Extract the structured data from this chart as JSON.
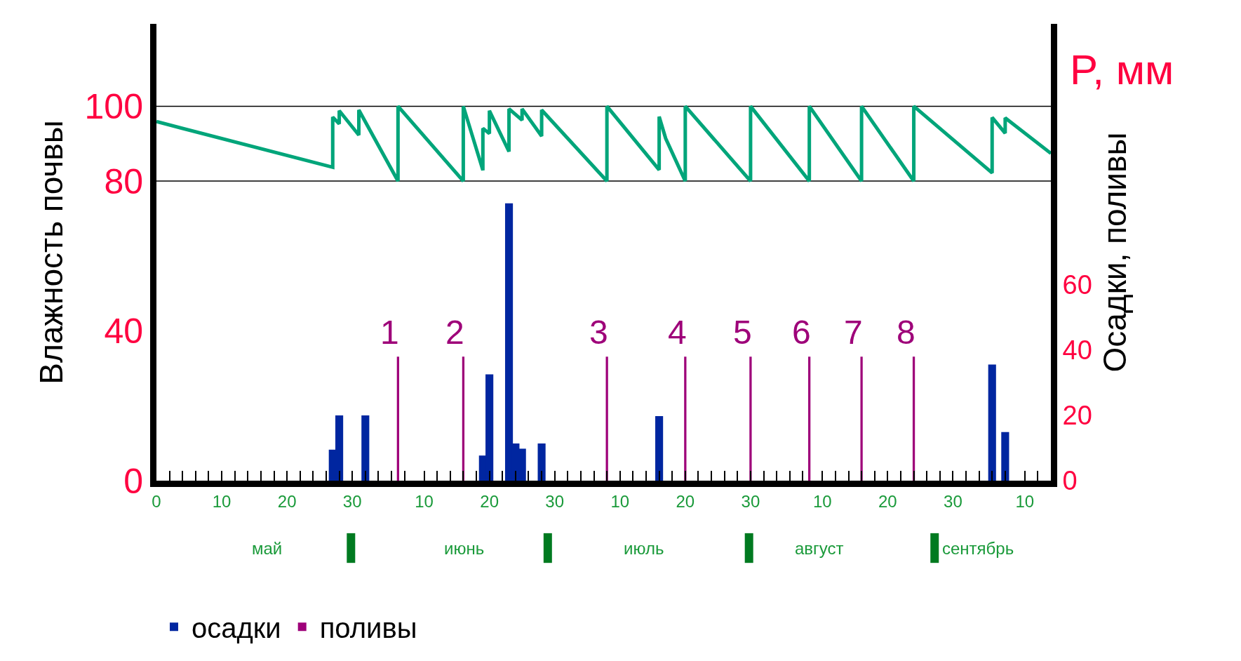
{
  "chart_data": {
    "type": "bar",
    "ylabel": "Влажность почвы",
    "y2label": "Осадки, поливы",
    "annotations": [
      "P, мм",
      "1",
      "2",
      "3",
      "4",
      "5",
      "6",
      "7",
      "8",
      "май",
      "июнь",
      "июль",
      "август",
      "сентябрь"
    ],
    "xlim": [
      "--04-30",
      "--09-14"
    ],
    "xticks": [
      {
        "value": "--04-30",
        "label": "0"
      },
      {
        "value": "--05-02",
        "label": null
      },
      {
        "value": "--05-04",
        "label": null
      },
      {
        "value": "--05-06",
        "label": null
      },
      {
        "value": "--05-08",
        "label": null
      },
      {
        "value": "--05-10",
        "label": "10"
      },
      {
        "value": "--05-12",
        "label": null
      },
      {
        "value": "--05-14",
        "label": null
      },
      {
        "value": "--05-16",
        "label": null
      },
      {
        "value": "--05-18",
        "label": null
      },
      {
        "value": "--05-20",
        "label": "20"
      },
      {
        "value": "--05-22",
        "label": null
      },
      {
        "value": "--05-24",
        "label": null
      },
      {
        "value": "--05-26",
        "label": null
      },
      {
        "value": "--05-28",
        "label": null
      },
      {
        "value": "--05-30",
        "label": "30"
      },
      {
        "value": "--06-01",
        "label": null
      },
      {
        "value": "--06-03",
        "label": null
      },
      {
        "value": "--06-05",
        "label": null
      },
      {
        "value": "--06-07",
        "label": null
      },
      {
        "value": "--06-10",
        "label": "10"
      },
      {
        "value": "--06-12",
        "label": null
      },
      {
        "value": "--06-14",
        "label": null
      },
      {
        "value": "--06-16",
        "label": null
      },
      {
        "value": "--06-18",
        "label": null
      },
      {
        "value": "--06-20",
        "label": "20"
      },
      {
        "value": "--06-22",
        "label": null
      },
      {
        "value": "--06-24",
        "label": null
      },
      {
        "value": "--06-26",
        "label": null
      },
      {
        "value": "--06-28",
        "label": null
      },
      {
        "value": "--06-30",
        "label": "30"
      },
      {
        "value": "--07-02",
        "label": null
      },
      {
        "value": "--07-04",
        "label": null
      },
      {
        "value": "--07-06",
        "label": null
      },
      {
        "value": "--07-08",
        "label": null
      },
      {
        "value": "--07-10",
        "label": "10"
      },
      {
        "value": "--07-12",
        "label": null
      },
      {
        "value": "--07-14",
        "label": null
      },
      {
        "value": "--07-16",
        "label": null
      },
      {
        "value": "--07-18",
        "label": null
      },
      {
        "value": "--07-20",
        "label": "20"
      },
      {
        "value": "--07-22",
        "label": null
      },
      {
        "value": "--07-24",
        "label": null
      },
      {
        "value": "--07-26",
        "label": null
      },
      {
        "value": "--07-28",
        "label": null
      },
      {
        "value": "--07-30",
        "label": "30"
      },
      {
        "value": "--08-01",
        "label": null
      },
      {
        "value": "--08-03",
        "label": null
      },
      {
        "value": "--08-05",
        "label": null
      },
      {
        "value": "--08-07",
        "label": null
      },
      {
        "value": "--08-10",
        "label": "10"
      },
      {
        "value": "--08-12",
        "label": null
      },
      {
        "value": "--08-14",
        "label": null
      },
      {
        "value": "--08-16",
        "label": null
      },
      {
        "value": "--08-18",
        "label": null
      },
      {
        "value": "--08-20",
        "label": "20"
      },
      {
        "value": "--08-22",
        "label": null
      },
      {
        "value": "--08-24",
        "label": null
      },
      {
        "value": "--08-26",
        "label": null
      },
      {
        "value": "--08-28",
        "label": null
      },
      {
        "value": "--08-30",
        "label": "30"
      },
      {
        "value": "--09-01",
        "label": null
      },
      {
        "value": "--09-03",
        "label": null
      },
      {
        "value": "--09-05",
        "label": null
      },
      {
        "value": "--09-07",
        "label": null
      },
      {
        "value": "--09-10",
        "label": "10"
      },
      {
        "value": "--09-12",
        "label": null
      }
    ],
    "ylim": [
      0,
      122
    ],
    "yticks": [
      0,
      40,
      80,
      100
    ],
    "y2lim": [
      0,
      140
    ],
    "y2ticks": [
      0,
      20,
      40,
      60
    ],
    "ref_lines": [
      {
        "axis": "y",
        "value": 80,
        "color": "#000000"
      },
      {
        "axis": "y",
        "value": 100,
        "color": "#000000"
      }
    ],
    "legend": "bottom left",
    "series": [
      {
        "name": "осадки",
        "axis": "y2",
        "color": "#0026a0",
        "x": [
          "--05-27",
          "--05-28",
          "--06-01",
          "--06-19",
          "--06-20",
          "--06-23",
          "--06-24",
          "--06-25",
          "--06-28",
          "--07-16",
          "--09-05",
          "--09-07"
        ],
        "values": [
          9.5,
          20,
          20,
          7.7,
          32.6,
          85,
          11.4,
          9.8,
          11.4,
          19.8,
          35.6,
          14.9
        ]
      },
      {
        "name": "поливы",
        "axis": "y2",
        "color": "#9e0079",
        "x": [
          "--06-06",
          "--06-16",
          "--07-08",
          "--07-20",
          "--07-30",
          "--08-08",
          "--08-16",
          "--08-24"
        ],
        "values": [
          38,
          38,
          38,
          38,
          38,
          38,
          38,
          38
        ]
      },
      {
        "type": "line",
        "axis": "y",
        "color": "#00a57a",
        "x": [
          "--04-30",
          "--05-27",
          "--05-27",
          "--05-28",
          "--05-28",
          "--05-31",
          "--05-31",
          "--06-06",
          "--06-06",
          "--06-16",
          "--06-16",
          "--06-19",
          "--06-19",
          "--06-20",
          "--06-20",
          "--06-23",
          "--06-23",
          "--06-25",
          "--06-25",
          "--06-28",
          "--06-28",
          "--07-08",
          "--07-08",
          "--07-16",
          "--07-16",
          "--07-17",
          "--07-20",
          "--07-20",
          "--07-30",
          "--07-30",
          "--08-08",
          "--08-08",
          "--08-16",
          "--08-16",
          "--08-24",
          "--08-24",
          "--09-05",
          "--09-05",
          "--09-07",
          "--09-07",
          "--09-14"
        ],
        "values": [
          95.9,
          83.7,
          97.1,
          95.3,
          98.8,
          92.3,
          99.0,
          80,
          100,
          80,
          100,
          82.9,
          94.1,
          92.7,
          98.8,
          87.9,
          99.3,
          96.3,
          99.3,
          92.0,
          99.0,
          80,
          100,
          83.0,
          97.2,
          91.4,
          80,
          100,
          80,
          100,
          80,
          100,
          80,
          100,
          80,
          100,
          82.2,
          97.0,
          92.8,
          96.9,
          87.4
        ]
      }
    ]
  }
}
